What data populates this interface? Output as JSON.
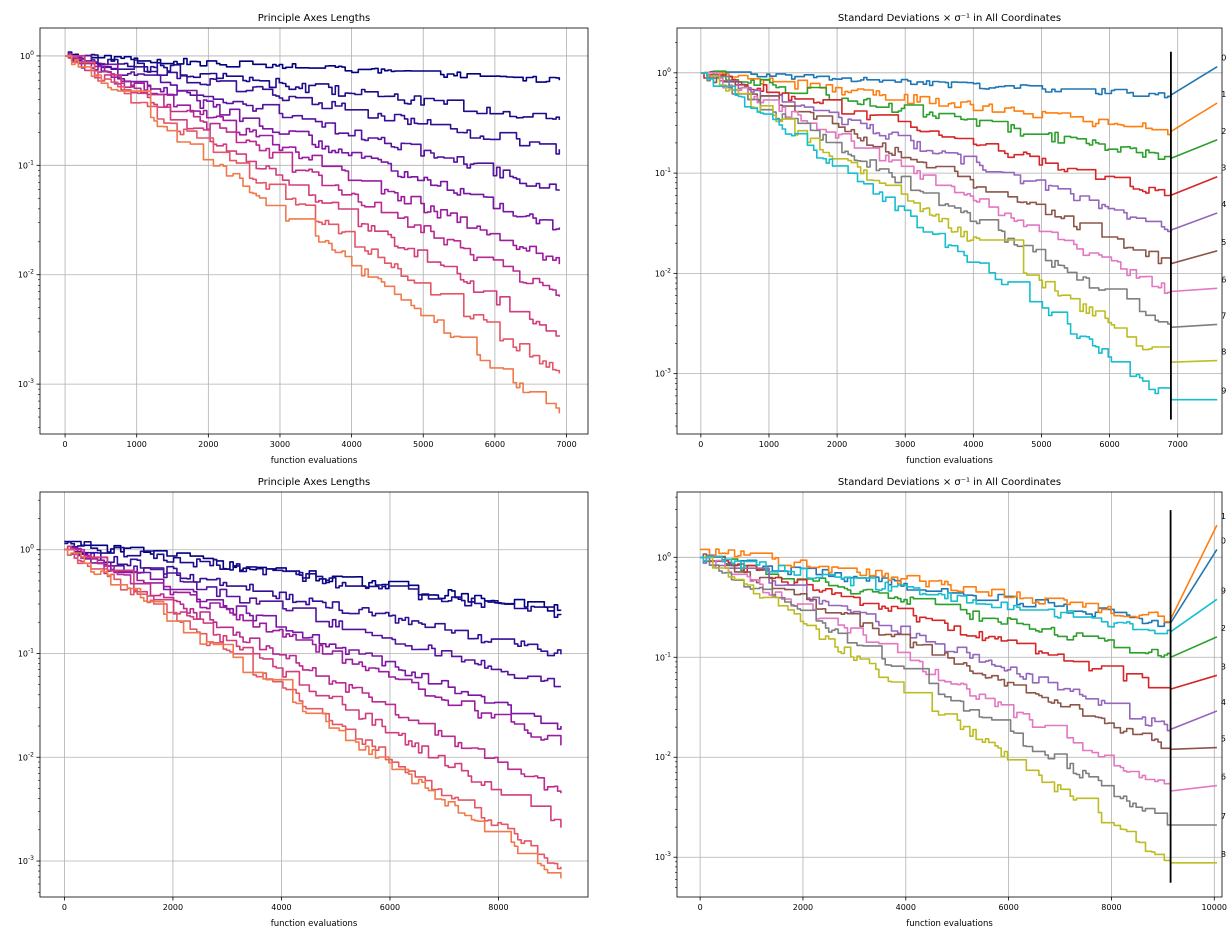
{
  "chart_data": [
    {
      "type": "line",
      "title": "Principle Axes Lengths",
      "xlabel": "function evaluations",
      "ylabel": "",
      "xscale": "linear",
      "yscale": "log",
      "xlim": [
        -350,
        7300
      ],
      "ylim": [
        0.00035,
        1.8
      ],
      "xticks": [
        0,
        1000,
        2000,
        3000,
        4000,
        5000,
        6000,
        7000
      ],
      "xtick_labels": [
        "0",
        "1000",
        "2000",
        "3000",
        "4000",
        "5000",
        "6000",
        "7000"
      ],
      "yticks": [
        0.001,
        0.01,
        0.1,
        1
      ],
      "ytick_labels": [
        "10^-3",
        "10^-2",
        "10^-1",
        "10^0"
      ],
      "grid": true,
      "x_end": 6900,
      "series": [
        {
          "color": "#000080",
          "start": 1.0,
          "end": 0.6
        },
        {
          "color": "#1a0c8a",
          "start": 1.0,
          "end": 0.26
        },
        {
          "color": "#330f96",
          "start": 1.0,
          "end": 0.14
        },
        {
          "color": "#55129f",
          "start": 1.0,
          "end": 0.06
        },
        {
          "color": "#7a16a4",
          "start": 1.0,
          "end": 0.027
        },
        {
          "color": "#9c1ca0",
          "start": 1.0,
          "end": 0.0125
        },
        {
          "color": "#bb2a90",
          "start": 1.0,
          "end": 0.0063
        },
        {
          "color": "#d23e7c",
          "start": 1.0,
          "end": 0.0028
        },
        {
          "color": "#e45766",
          "start": 1.0,
          "end": 0.00125
        },
        {
          "color": "#f07a4c",
          "start": 1.0,
          "end": 0.00054
        }
      ]
    },
    {
      "type": "line",
      "title": "Standard Deviations × σ⁻¹ in All Coordinates",
      "xlabel": "function evaluations",
      "ylabel": "",
      "xscale": "linear",
      "yscale": "log",
      "xlim": [
        -350,
        7650
      ],
      "ylim": [
        0.00025,
        2.8
      ],
      "xticks": [
        0,
        1000,
        2000,
        3000,
        4000,
        5000,
        6000,
        7000
      ],
      "xtick_labels": [
        "0",
        "1000",
        "2000",
        "3000",
        "4000",
        "5000",
        "6000",
        "7000"
      ],
      "yticks": [
        0.001,
        0.01,
        0.1,
        1
      ],
      "ytick_labels": [
        "10^-3",
        "10^-2",
        "10^-1",
        "10^0"
      ],
      "grid": true,
      "x_end": 6900,
      "series": [
        {
          "name": "0",
          "color": "#1f77b4",
          "start": 1.0,
          "end": 0.6,
          "label_y": 1.15
        },
        {
          "name": "1",
          "color": "#ff7f0e",
          "start": 1.0,
          "end": 0.26,
          "label_y": 0.5
        },
        {
          "name": "2",
          "color": "#2ca02c",
          "start": 1.0,
          "end": 0.14,
          "label_y": 0.215
        },
        {
          "name": "3",
          "color": "#d62728",
          "start": 1.0,
          "end": 0.06,
          "label_y": 0.092
        },
        {
          "name": "4",
          "color": "#9467bd",
          "start": 1.0,
          "end": 0.027,
          "label_y": 0.04
        },
        {
          "name": "5",
          "color": "#8c564b",
          "start": 1.0,
          "end": 0.0125,
          "label_y": 0.0168
        },
        {
          "name": "6",
          "color": "#e377c2",
          "start": 1.0,
          "end": 0.0066,
          "label_y": 0.0071
        },
        {
          "name": "7",
          "color": "#7f7f7f",
          "start": 1.0,
          "end": 0.0029,
          "label_y": 0.0031
        },
        {
          "name": "8",
          "color": "#bcbd22",
          "start": 1.0,
          "end": 0.0013,
          "label_y": 0.00135
        },
        {
          "name": "9",
          "color": "#17becf",
          "start": 1.0,
          "end": 0.00055,
          "label_y": 0.00055
        }
      ]
    },
    {
      "type": "line",
      "title": "Principle Axes Lengths",
      "xlabel": "function evaluations",
      "ylabel": "",
      "xscale": "linear",
      "yscale": "log",
      "xlim": [
        -450,
        9650
      ],
      "ylim": [
        0.00045,
        3.6
      ],
      "xticks": [
        0,
        2000,
        4000,
        6000,
        8000
      ],
      "xtick_labels": [
        "0",
        "2000",
        "4000",
        "6000",
        "8000"
      ],
      "yticks": [
        0.001,
        0.01,
        0.1,
        1
      ],
      "ytick_labels": [
        "10^-3",
        "10^-2",
        "10^-1",
        "10^0"
      ],
      "grid": true,
      "x_end": 9150,
      "series": [
        {
          "color": "#000080",
          "start": 1.2,
          "end": 0.26
        },
        {
          "color": "#1a0c8a",
          "start": 1.15,
          "end": 0.235
        },
        {
          "color": "#330f96",
          "start": 1.0,
          "end": 0.098
        },
        {
          "color": "#55129f",
          "start": 1.0,
          "end": 0.048
        },
        {
          "color": "#7a16a4",
          "start": 1.0,
          "end": 0.02
        },
        {
          "color": "#9c1ca0",
          "start": 1.0,
          "end": 0.013
        },
        {
          "color": "#bb2a90",
          "start": 1.0,
          "end": 0.0045
        },
        {
          "color": "#d23e7c",
          "start": 1.0,
          "end": 0.0021
        },
        {
          "color": "#e45766",
          "start": 1.0,
          "end": 0.00088
        },
        {
          "color": "#f07a4c",
          "start": 1.0,
          "end": 0.00068
        }
      ]
    },
    {
      "type": "line",
      "title": "Standard Deviations × σ⁻¹ in All Coordinates",
      "xlabel": "function evaluations",
      "ylabel": "",
      "xscale": "linear",
      "yscale": "log",
      "xlim": [
        -450,
        10150
      ],
      "ylim": [
        0.0004,
        4.5
      ],
      "xticks": [
        0,
        2000,
        4000,
        6000,
        8000,
        10000
      ],
      "xtick_labels": [
        "0",
        "2000",
        "4000",
        "6000",
        "8000",
        "10000"
      ],
      "yticks": [
        0.001,
        0.01,
        0.1,
        1
      ],
      "ytick_labels": [
        "10^-3",
        "10^-2",
        "10^-1",
        "10^0"
      ],
      "grid": true,
      "x_end": 9150,
      "series": [
        {
          "name": "0",
          "color": "#1f77b4",
          "start": 1.0,
          "end": 0.22,
          "label_y": 1.2
        },
        {
          "name": "1",
          "color": "#ff7f0e",
          "start": 1.2,
          "end": 0.24,
          "label_y": 2.1
        },
        {
          "name": "2",
          "color": "#2ca02c",
          "start": 1.0,
          "end": 0.1,
          "label_y": 0.16
        },
        {
          "name": "3",
          "color": "#d62728",
          "start": 1.0,
          "end": 0.048,
          "label_y": 0.066
        },
        {
          "name": "4",
          "color": "#9467bd",
          "start": 1.0,
          "end": 0.019,
          "label_y": 0.029
        },
        {
          "name": "5",
          "color": "#8c564b",
          "start": 1.0,
          "end": 0.012,
          "label_y": 0.0125
        },
        {
          "name": "6",
          "color": "#e377c2",
          "start": 1.0,
          "end": 0.0046,
          "label_y": 0.0052
        },
        {
          "name": "7",
          "color": "#7f7f7f",
          "start": 1.0,
          "end": 0.0021,
          "label_y": 0.0021
        },
        {
          "name": "8",
          "color": "#bcbd22",
          "start": 1.0,
          "end": 0.00088,
          "label_y": 0.00088
        },
        {
          "name": "9",
          "color": "#17becf",
          "start": 1.0,
          "end": 0.18,
          "label_y": 0.38
        }
      ]
    }
  ]
}
